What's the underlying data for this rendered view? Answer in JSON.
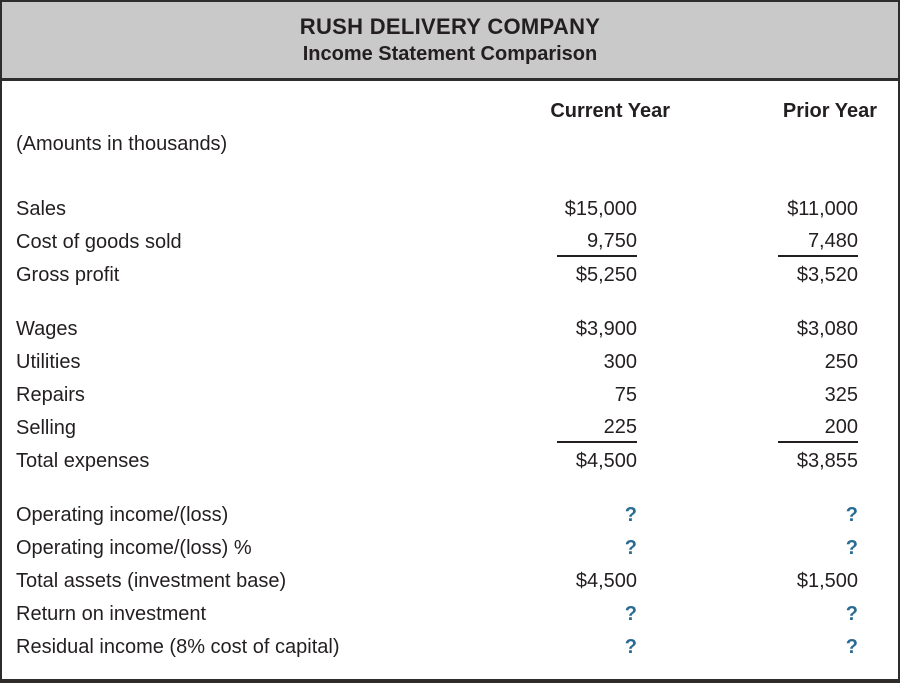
{
  "header": {
    "title": "RUSH DELIVERY COMPANY",
    "subtitle": "Income Statement Comparison"
  },
  "columns": {
    "current": "Current Year",
    "prior": "Prior Year"
  },
  "note": "(Amounts in thousands)",
  "colors": {
    "header_bg": "#c9c9c9",
    "border": "#2e2d2c",
    "text": "#231f20",
    "question_mark": "#2a6b93"
  },
  "placeholder_symbol": "?",
  "sections": [
    {
      "rows": [
        {
          "label": "Sales",
          "current": "$15,000",
          "prior": "$11,000",
          "underline": false
        },
        {
          "label": "Cost of goods sold",
          "current": "9,750",
          "prior": "7,480",
          "underline": true
        },
        {
          "label": "Gross profit",
          "current": "$5,250",
          "prior": "$3,520",
          "underline": false
        }
      ]
    },
    {
      "rows": [
        {
          "label": "Wages",
          "current": "$3,900",
          "prior": "$3,080",
          "underline": false
        },
        {
          "label": "Utilities",
          "current": "300",
          "prior": "250",
          "underline": false
        },
        {
          "label": "Repairs",
          "current": "75",
          "prior": "325",
          "underline": false
        },
        {
          "label": "Selling",
          "current": "225",
          "prior": "200",
          "underline": true
        },
        {
          "label": "Total expenses",
          "current": "$4,500",
          "prior": "$3,855",
          "underline": false
        }
      ]
    },
    {
      "rows": [
        {
          "label": "Operating income/(loss)",
          "current": "?",
          "prior": "?",
          "underline": false
        },
        {
          "label": "Operating income/(loss) %",
          "current": "?",
          "prior": "?",
          "underline": false
        },
        {
          "label": "Total assets (investment base)",
          "current": "$4,500",
          "prior": "$1,500",
          "underline": false
        },
        {
          "label": "Return on investment",
          "current": "?",
          "prior": "?",
          "underline": false
        },
        {
          "label": "Residual income (8% cost of capital)",
          "current": "?",
          "prior": "?",
          "underline": false
        }
      ]
    }
  ]
}
